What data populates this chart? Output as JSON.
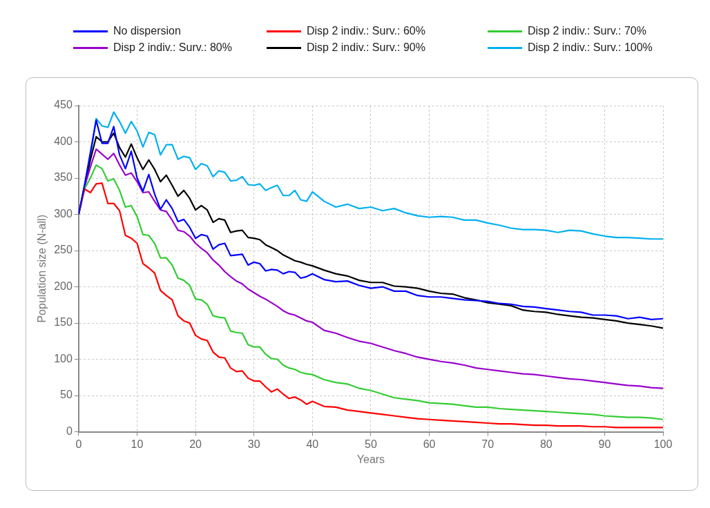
{
  "chart_data": {
    "type": "line",
    "xlabel": "Years",
    "ylabel": "Population size (N-all)",
    "xlim": [
      0,
      100
    ],
    "xticks": [
      0,
      10,
      20,
      30,
      40,
      50,
      60,
      70,
      80,
      90,
      100
    ],
    "ylim": [
      0,
      450
    ],
    "yticks": [
      0,
      50,
      100,
      150,
      200,
      250,
      300,
      350,
      400,
      450
    ],
    "grid": true,
    "legend": "top",
    "marker": "none",
    "line_style": "solid",
    "series": [
      {
        "name": "No dispersion",
        "color": "#0000ff",
        "x": [
          0,
          1,
          2,
          3,
          4,
          5,
          6,
          7,
          8,
          9,
          10,
          11,
          12,
          13,
          14,
          15,
          16,
          17,
          18,
          19,
          20,
          21,
          22,
          23,
          24,
          25,
          26,
          27,
          28,
          29,
          30,
          31,
          32,
          33,
          34,
          35,
          36,
          37,
          38,
          39,
          40,
          42,
          44,
          46,
          48,
          50,
          52,
          54,
          56,
          58,
          60,
          62,
          64,
          66,
          68,
          70,
          72,
          74,
          76,
          78,
          80,
          82,
          84,
          86,
          88,
          90,
          92,
          94,
          96,
          98,
          100
        ],
        "values": [
          300,
          340,
          385,
          430,
          398,
          398,
          421,
          382,
          363,
          387,
          350,
          332,
          355,
          328,
          307,
          320,
          308,
          290,
          293,
          282,
          267,
          272,
          270,
          252,
          258,
          260,
          243,
          244,
          245,
          230,
          234,
          232,
          222,
          224,
          223,
          218,
          221,
          220,
          212,
          214,
          218,
          210,
          207,
          208,
          202,
          198,
          200,
          194,
          194,
          188,
          186,
          186,
          184,
          182,
          181,
          180,
          177,
          176,
          173,
          172,
          170,
          168,
          166,
          165,
          161,
          161,
          160,
          156,
          158,
          155,
          156
        ]
      },
      {
        "name": "Disp 2 indiv.: Surv.: 60%",
        "color": "#ff0000",
        "x": [
          0,
          1,
          2,
          3,
          4,
          5,
          6,
          7,
          8,
          9,
          10,
          11,
          12,
          13,
          14,
          15,
          16,
          17,
          18,
          19,
          20,
          21,
          22,
          23,
          24,
          25,
          26,
          27,
          28,
          29,
          30,
          31,
          32,
          33,
          34,
          35,
          36,
          37,
          38,
          39,
          40,
          42,
          44,
          46,
          48,
          50,
          52,
          54,
          56,
          58,
          60,
          62,
          64,
          66,
          68,
          70,
          72,
          74,
          76,
          78,
          80,
          82,
          84,
          86,
          88,
          90,
          92,
          94,
          96,
          98,
          100
        ],
        "values": [
          300,
          335,
          330,
          342,
          343,
          315,
          315,
          305,
          271,
          267,
          260,
          232,
          226,
          219,
          195,
          188,
          182,
          160,
          153,
          150,
          133,
          128,
          126,
          110,
          103,
          102,
          88,
          83,
          84,
          74,
          70,
          70,
          62,
          55,
          59,
          52,
          46,
          48,
          44,
          38,
          42,
          35,
          34,
          30,
          28,
          26,
          24,
          22,
          20,
          18,
          17,
          16,
          15,
          14,
          13,
          12,
          11,
          11,
          10,
          9,
          9,
          8,
          8,
          8,
          7,
          7,
          6,
          6,
          6,
          6,
          6
        ]
      },
      {
        "name": "Disp 2 indiv.: Surv.: 70%",
        "color": "#33cc33",
        "x": [
          0,
          1,
          2,
          3,
          4,
          5,
          6,
          7,
          8,
          9,
          10,
          11,
          12,
          13,
          14,
          15,
          16,
          17,
          18,
          19,
          20,
          21,
          22,
          23,
          24,
          25,
          26,
          27,
          28,
          29,
          30,
          31,
          32,
          33,
          34,
          35,
          36,
          37,
          38,
          39,
          40,
          42,
          44,
          46,
          48,
          50,
          52,
          54,
          56,
          58,
          60,
          62,
          64,
          66,
          68,
          70,
          72,
          74,
          76,
          78,
          80,
          82,
          84,
          86,
          88,
          90,
          92,
          94,
          96,
          98,
          100
        ],
        "values": [
          300,
          335,
          350,
          368,
          363,
          346,
          349,
          333,
          310,
          312,
          297,
          272,
          271,
          260,
          240,
          240,
          230,
          212,
          209,
          202,
          183,
          182,
          176,
          160,
          158,
          157,
          139,
          137,
          136,
          120,
          117,
          117,
          107,
          101,
          100,
          92,
          88,
          86,
          82,
          80,
          79,
          72,
          68,
          66,
          60,
          57,
          52,
          47,
          45,
          43,
          40,
          39,
          38,
          36,
          34,
          34,
          32,
          31,
          30,
          29,
          28,
          27,
          26,
          25,
          24,
          22,
          21,
          20,
          20,
          19,
          17
        ]
      },
      {
        "name": "Disp 2 indiv.: Surv.: 80%",
        "color": "#9900cc",
        "x": [
          0,
          1,
          2,
          3,
          4,
          5,
          6,
          7,
          8,
          9,
          10,
          11,
          12,
          13,
          14,
          15,
          16,
          17,
          18,
          19,
          20,
          21,
          22,
          23,
          24,
          25,
          26,
          27,
          28,
          29,
          30,
          31,
          32,
          33,
          34,
          35,
          36,
          37,
          38,
          39,
          40,
          42,
          44,
          46,
          48,
          50,
          52,
          54,
          56,
          58,
          60,
          62,
          64,
          66,
          68,
          70,
          72,
          74,
          76,
          78,
          80,
          82,
          84,
          86,
          88,
          90,
          92,
          94,
          96,
          98,
          100
        ],
        "values": [
          300,
          338,
          365,
          390,
          383,
          376,
          384,
          368,
          354,
          357,
          345,
          330,
          331,
          318,
          306,
          304,
          292,
          278,
          276,
          270,
          260,
          253,
          247,
          237,
          230,
          221,
          214,
          208,
          204,
          197,
          192,
          187,
          183,
          178,
          173,
          167,
          163,
          161,
          157,
          153,
          151,
          140,
          136,
          130,
          125,
          122,
          117,
          112,
          108,
          103,
          100,
          97,
          95,
          92,
          88,
          86,
          84,
          82,
          80,
          79,
          77,
          75,
          73,
          72,
          70,
          68,
          66,
          64,
          63,
          61,
          60
        ]
      },
      {
        "name": "Disp 2 indiv.: Surv.: 90%",
        "color": "#000000",
        "x": [
          0,
          2,
          3,
          4,
          5,
          6,
          7,
          8,
          9,
          10,
          11,
          12,
          13,
          14,
          15,
          16,
          17,
          18,
          19,
          20,
          21,
          22,
          23,
          24,
          25,
          26,
          27,
          28,
          29,
          30,
          31,
          32,
          33,
          34,
          35,
          36,
          37,
          38,
          39,
          40,
          42,
          44,
          46,
          48,
          50,
          52,
          54,
          56,
          58,
          60,
          62,
          64,
          66,
          68,
          70,
          72,
          74,
          76,
          78,
          80,
          82,
          84,
          86,
          88,
          90,
          92,
          94,
          96,
          98,
          100
        ],
        "values": [
          300,
          375,
          407,
          400,
          400,
          412,
          392,
          379,
          397,
          378,
          362,
          375,
          362,
          345,
          354,
          340,
          325,
          333,
          322,
          306,
          312,
          306,
          289,
          294,
          292,
          275,
          277,
          278,
          268,
          267,
          265,
          258,
          254,
          250,
          244,
          240,
          236,
          234,
          231,
          229,
          223,
          218,
          215,
          209,
          206,
          206,
          201,
          200,
          198,
          194,
          191,
          190,
          185,
          182,
          178,
          176,
          174,
          168,
          166,
          165,
          162,
          160,
          158,
          157,
          155,
          153,
          150,
          148,
          146,
          143
        ]
      },
      {
        "name": "Disp 2 indiv.: Surv.: 100%",
        "color": "#00b0f0",
        "x": [
          0,
          1,
          2,
          3,
          4,
          5,
          6,
          7,
          8,
          9,
          10,
          11,
          12,
          13,
          14,
          15,
          16,
          17,
          18,
          19,
          20,
          21,
          22,
          23,
          24,
          25,
          26,
          27,
          28,
          29,
          30,
          31,
          32,
          33,
          34,
          35,
          36,
          37,
          38,
          39,
          40,
          42,
          44,
          46,
          48,
          50,
          52,
          54,
          56,
          58,
          60,
          62,
          64,
          66,
          68,
          70,
          72,
          74,
          76,
          78,
          80,
          82,
          84,
          86,
          88,
          90,
          92,
          94,
          96,
          98,
          100
        ],
        "values": [
          300,
          340,
          380,
          432,
          422,
          420,
          441,
          428,
          412,
          428,
          415,
          393,
          413,
          410,
          382,
          396,
          396,
          376,
          380,
          378,
          362,
          370,
          367,
          352,
          360,
          358,
          346,
          347,
          352,
          341,
          340,
          342,
          333,
          337,
          340,
          326,
          326,
          333,
          320,
          318,
          331,
          318,
          310,
          314,
          308,
          310,
          305,
          308,
          302,
          298,
          296,
          297,
          296,
          292,
          292,
          288,
          285,
          281,
          279,
          279,
          278,
          275,
          278,
          277,
          273,
          270,
          268,
          268,
          267,
          266,
          266
        ]
      }
    ]
  }
}
